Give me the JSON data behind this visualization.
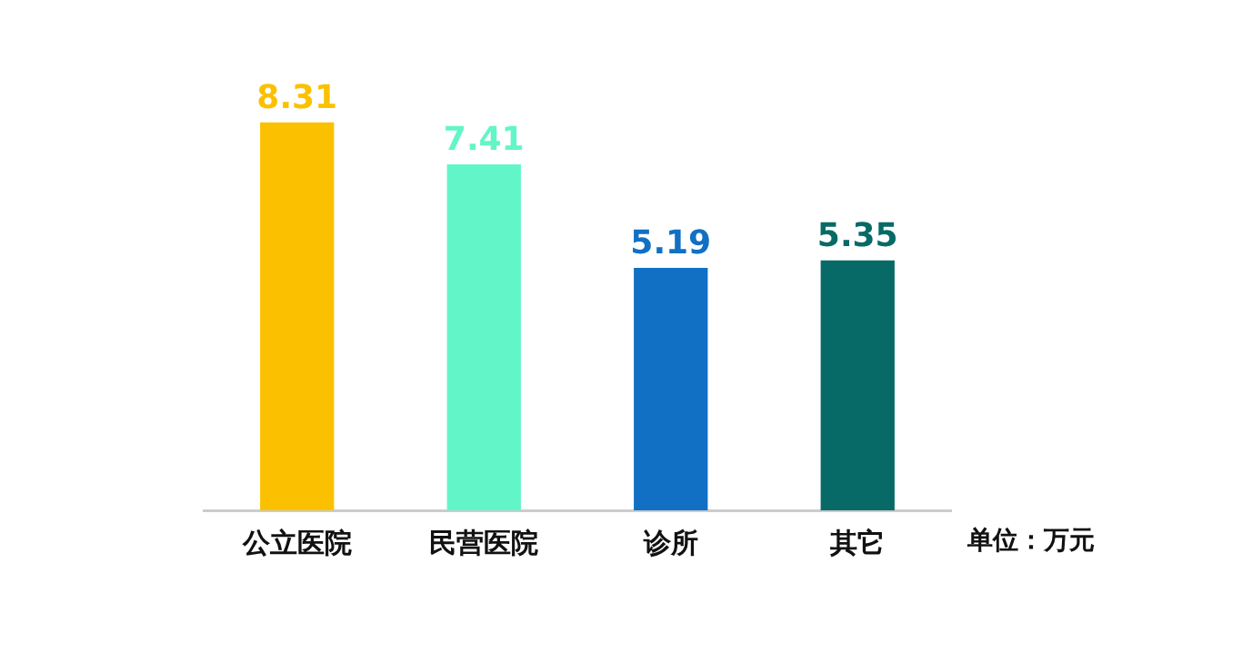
{
  "chart_data": {
    "type": "bar",
    "categories": [
      "公立医院",
      "民营医院",
      "诊所",
      "其它"
    ],
    "values": [
      8.31,
      7.41,
      5.19,
      5.35
    ],
    "colors": [
      "#fbc100",
      "#62f5c8",
      "#1170c4",
      "#086a67"
    ],
    "data_labels": true,
    "grid": false,
    "legend": false,
    "tick_labels": "x",
    "annotations": [
      "单位：万元"
    ]
  }
}
